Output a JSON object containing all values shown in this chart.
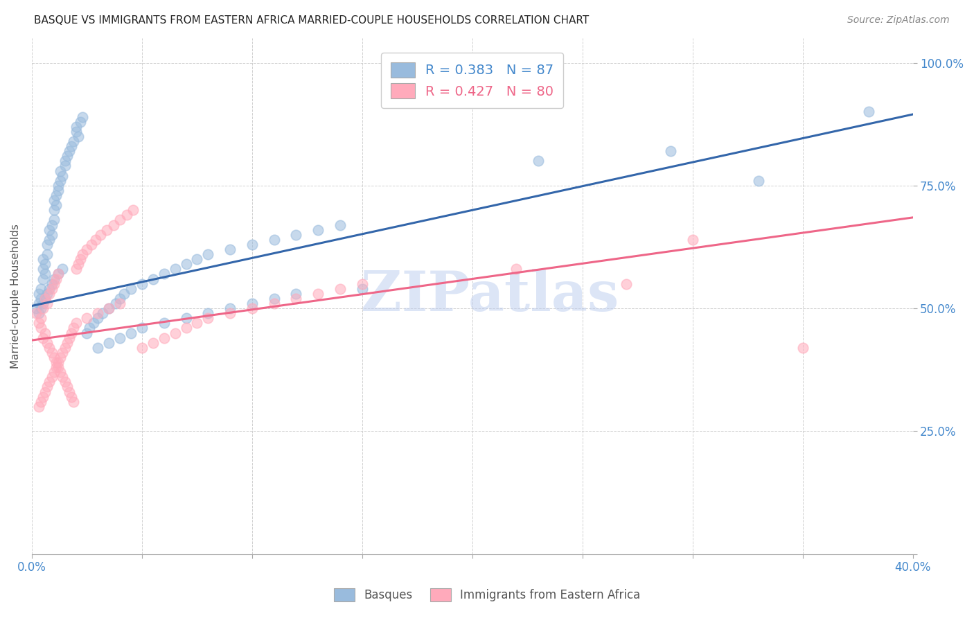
{
  "title": "BASQUE VS IMMIGRANTS FROM EASTERN AFRICA MARRIED-COUPLE HOUSEHOLDS CORRELATION CHART",
  "source": "Source: ZipAtlas.com",
  "ylabel": "Married-couple Households",
  "xlabel_basque": "Basques",
  "xlabel_eastern": "Immigrants from Eastern Africa",
  "x_min": 0.0,
  "x_max": 0.4,
  "y_min": 0.0,
  "y_max": 1.05,
  "y_ticks": [
    0.0,
    0.25,
    0.5,
    0.75,
    1.0
  ],
  "y_tick_labels_right": [
    "",
    "25.0%",
    "50.0%",
    "75.0%",
    "100.0%"
  ],
  "R_blue": 0.383,
  "N_blue": 87,
  "R_pink": 0.427,
  "N_pink": 80,
  "color_blue": "#99BBDD",
  "color_blue_line": "#3366AA",
  "color_pink": "#FFAABB",
  "color_pink_line": "#EE6688",
  "color_blue_text": "#4488CC",
  "color_pink_text": "#EE6688",
  "watermark": "ZIPatlas",
  "watermark_color": "#BBCCEE",
  "blue_line_x0": 0.0,
  "blue_line_y0": 0.505,
  "blue_line_x1": 0.4,
  "blue_line_y1": 0.895,
  "pink_line_x0": 0.0,
  "pink_line_y0": 0.435,
  "pink_line_x1": 0.4,
  "pink_line_y1": 0.685,
  "blue_scatter_x": [
    0.002,
    0.003,
    0.003,
    0.004,
    0.004,
    0.005,
    0.005,
    0.005,
    0.006,
    0.006,
    0.007,
    0.007,
    0.008,
    0.008,
    0.009,
    0.009,
    0.01,
    0.01,
    0.01,
    0.011,
    0.011,
    0.012,
    0.012,
    0.013,
    0.013,
    0.014,
    0.015,
    0.015,
    0.016,
    0.017,
    0.018,
    0.019,
    0.02,
    0.02,
    0.021,
    0.022,
    0.023,
    0.025,
    0.026,
    0.028,
    0.03,
    0.032,
    0.035,
    0.038,
    0.04,
    0.042,
    0.045,
    0.05,
    0.055,
    0.06,
    0.065,
    0.07,
    0.075,
    0.08,
    0.09,
    0.1,
    0.11,
    0.12,
    0.13,
    0.14,
    0.03,
    0.035,
    0.04,
    0.045,
    0.05,
    0.06,
    0.07,
    0.08,
    0.09,
    0.1,
    0.11,
    0.12,
    0.15,
    0.003,
    0.004,
    0.005,
    0.006,
    0.007,
    0.008,
    0.009,
    0.01,
    0.012,
    0.014,
    0.23,
    0.29,
    0.33,
    0.38
  ],
  "blue_scatter_y": [
    0.5,
    0.51,
    0.53,
    0.52,
    0.54,
    0.56,
    0.58,
    0.6,
    0.57,
    0.59,
    0.61,
    0.63,
    0.64,
    0.66,
    0.65,
    0.67,
    0.68,
    0.7,
    0.72,
    0.71,
    0.73,
    0.75,
    0.74,
    0.76,
    0.78,
    0.77,
    0.79,
    0.8,
    0.81,
    0.82,
    0.83,
    0.84,
    0.86,
    0.87,
    0.85,
    0.88,
    0.89,
    0.45,
    0.46,
    0.47,
    0.48,
    0.49,
    0.5,
    0.51,
    0.52,
    0.53,
    0.54,
    0.55,
    0.56,
    0.57,
    0.58,
    0.59,
    0.6,
    0.61,
    0.62,
    0.63,
    0.64,
    0.65,
    0.66,
    0.67,
    0.42,
    0.43,
    0.44,
    0.45,
    0.46,
    0.47,
    0.48,
    0.49,
    0.5,
    0.51,
    0.52,
    0.53,
    0.54,
    0.49,
    0.5,
    0.51,
    0.52,
    0.53,
    0.54,
    0.55,
    0.56,
    0.57,
    0.58,
    0.8,
    0.82,
    0.76,
    0.9
  ],
  "pink_scatter_x": [
    0.002,
    0.003,
    0.004,
    0.004,
    0.005,
    0.005,
    0.006,
    0.006,
    0.007,
    0.007,
    0.008,
    0.008,
    0.009,
    0.009,
    0.01,
    0.01,
    0.011,
    0.011,
    0.012,
    0.012,
    0.013,
    0.014,
    0.015,
    0.016,
    0.017,
    0.018,
    0.019,
    0.02,
    0.021,
    0.022,
    0.023,
    0.025,
    0.027,
    0.029,
    0.031,
    0.034,
    0.037,
    0.04,
    0.043,
    0.046,
    0.05,
    0.055,
    0.06,
    0.065,
    0.07,
    0.075,
    0.08,
    0.09,
    0.1,
    0.11,
    0.12,
    0.13,
    0.14,
    0.15,
    0.003,
    0.004,
    0.005,
    0.006,
    0.007,
    0.008,
    0.009,
    0.01,
    0.011,
    0.012,
    0.013,
    0.014,
    0.015,
    0.016,
    0.017,
    0.018,
    0.019,
    0.02,
    0.025,
    0.03,
    0.035,
    0.04,
    0.22,
    0.27,
    0.3,
    0.35
  ],
  "pink_scatter_y": [
    0.49,
    0.47,
    0.48,
    0.46,
    0.5,
    0.44,
    0.52,
    0.45,
    0.43,
    0.51,
    0.42,
    0.53,
    0.41,
    0.54,
    0.4,
    0.55,
    0.39,
    0.56,
    0.38,
    0.57,
    0.37,
    0.36,
    0.35,
    0.34,
    0.33,
    0.32,
    0.31,
    0.58,
    0.59,
    0.6,
    0.61,
    0.62,
    0.63,
    0.64,
    0.65,
    0.66,
    0.67,
    0.68,
    0.69,
    0.7,
    0.42,
    0.43,
    0.44,
    0.45,
    0.46,
    0.47,
    0.48,
    0.49,
    0.5,
    0.51,
    0.52,
    0.53,
    0.54,
    0.55,
    0.3,
    0.31,
    0.32,
    0.33,
    0.34,
    0.35,
    0.36,
    0.37,
    0.38,
    0.39,
    0.4,
    0.41,
    0.42,
    0.43,
    0.44,
    0.45,
    0.46,
    0.47,
    0.48,
    0.49,
    0.5,
    0.51,
    0.58,
    0.55,
    0.64,
    0.42
  ]
}
